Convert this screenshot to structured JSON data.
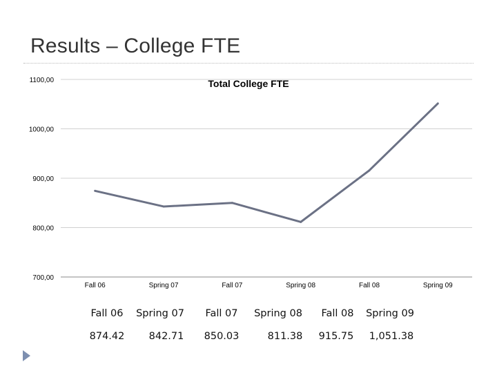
{
  "slide": {
    "title": "Results – College FTE"
  },
  "chart_data": {
    "type": "line",
    "title": "Total College FTE",
    "categories": [
      "Fall 06",
      "Spring 07",
      "Fall 07",
      "Spring 08",
      "Fall 08",
      "Spring 09"
    ],
    "series": [
      {
        "values": [
          874.42,
          842.71,
          850.03,
          811.38,
          915.75,
          1051.38
        ]
      }
    ],
    "ylim": [
      700,
      1100
    ],
    "yticks": [
      700,
      800,
      900,
      1000,
      1100
    ],
    "ytick_labels": [
      "700,00",
      "800,00",
      "900,00",
      "1000,00",
      "1100,00"
    ],
    "grid": true,
    "line_color": "#6b7185",
    "legend": "none"
  },
  "table": {
    "header": [
      "Fall 06",
      "Spring 07",
      "Fall 07",
      "Spring 08",
      "Fall 08",
      "Spring 09"
    ],
    "values": [
      "874.42",
      "842.71",
      "850.03",
      "811.38",
      "915.75",
      "1,051.38"
    ]
  },
  "icons": {
    "bullet": "triangle-bullet-icon"
  }
}
